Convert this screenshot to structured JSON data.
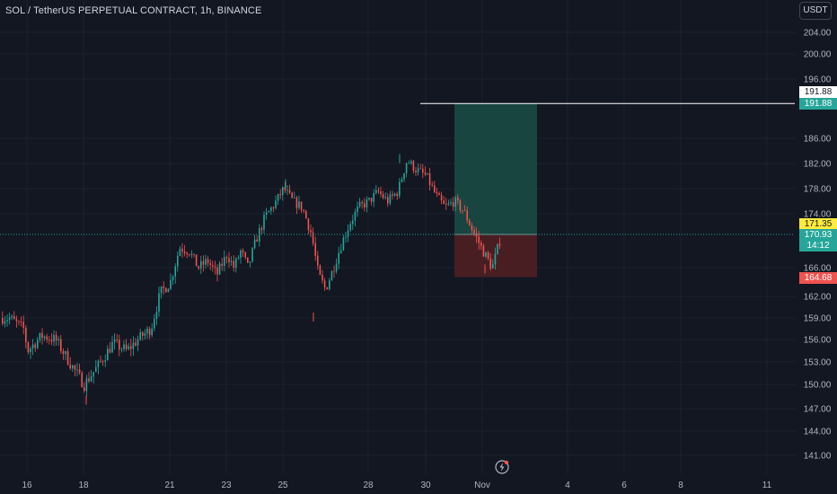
{
  "header": {
    "title": "SOL / TetherUS PERPETUAL CONTRACT, 1h, BINANCE",
    "currency": "USDT"
  },
  "colors": {
    "background": "#131722",
    "grid": "#1e222d",
    "up": "#26a69a",
    "down": "#ef5350",
    "text": "#d1d4dc",
    "axis_text": "#b2b5be",
    "profit_zone": "#1b4d45",
    "loss_zone": "#4f1f24",
    "current_price": "#ffeb3b"
  },
  "chart_data": {
    "type": "candlestick",
    "title": "SOL / TetherUS PERPETUAL CONTRACT, 1h, BINANCE",
    "y_ticks": [
      "204.00",
      "200.00",
      "196.00",
      "186.00",
      "182.00",
      "178.00",
      "174.00",
      "166.00",
      "162.00",
      "159.00",
      "156.00",
      "153.00",
      "150.00",
      "147.00",
      "144.00",
      "141.00"
    ],
    "x_ticks": [
      "16",
      "18",
      "21",
      "23",
      "25",
      "28",
      "30",
      "Nov",
      "4",
      "6",
      "8",
      "11"
    ],
    "ylim": [
      139.5,
      206.5
    ],
    "grid": true,
    "series": [
      {
        "path_points": [
          [
            "Oct 15",
            159.0
          ],
          [
            "Oct 15",
            157.5
          ],
          [
            "Oct 16",
            154.5
          ],
          [
            "Oct 16",
            156.5
          ],
          [
            "Oct 17",
            156.0
          ],
          [
            "Oct 17",
            154.0
          ],
          [
            "Oct 17",
            152.0
          ],
          [
            "Oct 18",
            150.0
          ],
          [
            "Oct 18",
            152.5
          ],
          [
            "Oct 19",
            155.5
          ],
          [
            "Oct 19",
            154.5
          ],
          [
            "Oct 20",
            156.5
          ],
          [
            "Oct 20",
            157.5
          ],
          [
            "Oct 20",
            162.5
          ],
          [
            "Oct 21",
            164.0
          ],
          [
            "Oct 21",
            169.0
          ],
          [
            "Oct 21",
            168.5
          ],
          [
            "Oct 22",
            166.0
          ],
          [
            "Oct 22",
            167.0
          ],
          [
            "Oct 22",
            165.0
          ],
          [
            "Oct 23",
            168.0
          ],
          [
            "Oct 23",
            166.0
          ],
          [
            "Oct 23",
            168.5
          ],
          [
            "Oct 23",
            166.0
          ],
          [
            "Oct 24",
            170.0
          ],
          [
            "Oct 24",
            173.5
          ],
          [
            "Oct 24",
            175.5
          ],
          [
            "Oct 25",
            178.0
          ],
          [
            "Oct 25",
            176.0
          ],
          [
            "Oct 25",
            175.0
          ],
          [
            "Oct 26",
            171.0
          ],
          [
            "Oct 26",
            165.0
          ],
          [
            "Oct 26",
            163.0
          ],
          [
            "Oct 26",
            165.5
          ],
          [
            "Oct 27",
            169.0
          ],
          [
            "Oct 27",
            172.5
          ],
          [
            "Oct 27",
            175.0
          ],
          [
            "Oct 28",
            176.0
          ],
          [
            "Oct 28",
            177.5
          ],
          [
            "Oct 28",
            176.0
          ],
          [
            "Oct 29",
            177.5
          ],
          [
            "Oct 29",
            182.5
          ],
          [
            "Oct 29",
            181.0
          ],
          [
            "Oct 30",
            180.0
          ],
          [
            "Oct 30",
            177.0
          ],
          [
            "Oct 30",
            175.0
          ],
          [
            "Oct 31",
            176.0
          ],
          [
            "Oct 31",
            174.5
          ],
          [
            "Oct 31",
            171.5
          ],
          [
            "Nov 1",
            168.5
          ],
          [
            "Nov 1",
            166.0
          ],
          [
            "Nov 1",
            170.9
          ]
        ],
        "low_points": [
          [
            "Oct 18",
            147.5
          ],
          [
            "Oct 26",
            158.5
          ],
          [
            "Nov 1",
            165.2
          ]
        ],
        "high_points": [
          [
            "Oct 25",
            179.5
          ],
          [
            "Oct 29",
            183.5
          ]
        ]
      }
    ],
    "position": {
      "target_price": "191.88",
      "entry_price": "170.93",
      "stop_price": "164.68",
      "current_price": "171.35",
      "countdown": "14:12"
    }
  },
  "price_labels": {
    "alert": "191.88",
    "target": "191.88",
    "current": "171.35",
    "last": "170.93",
    "timer": "14:12",
    "stop": "164.68"
  },
  "bottom_icon": "lightning-bolt-icon"
}
